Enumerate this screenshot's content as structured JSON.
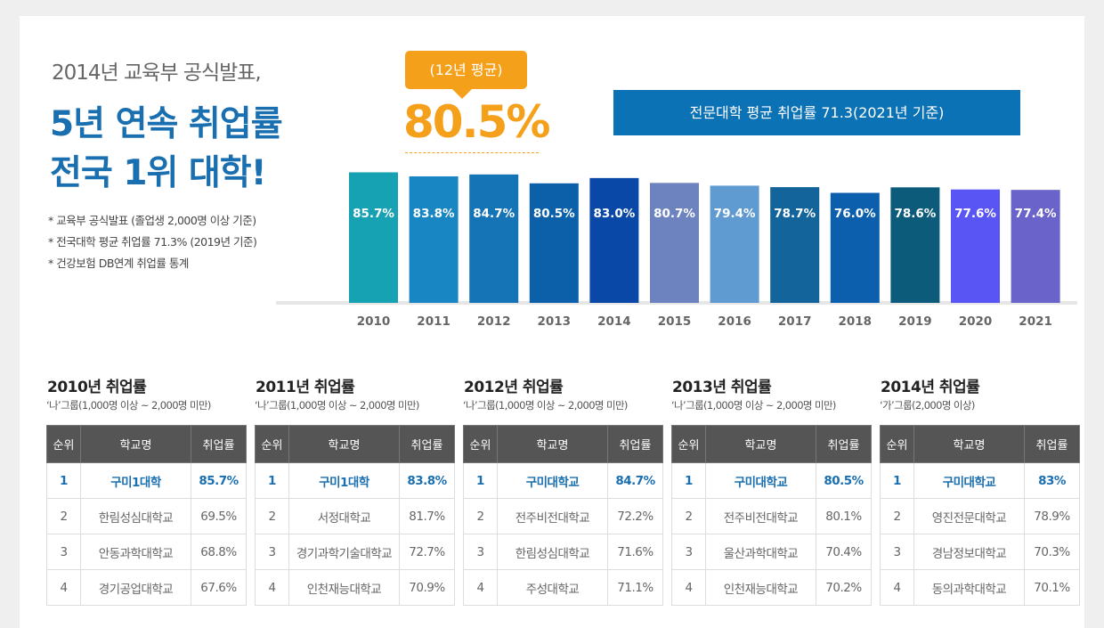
{
  "header": {
    "line1": "2014년 교육부 공식발표,",
    "line2": "5년 연속 취업률",
    "line3": "전국 1위 대학!",
    "notes": [
      "* 교육부 공식발표 (졸업생 2,000명 이상 기준)",
      "* 전국대학 평균 취업률 71.3% (2019년 기준)",
      "* 건강보험 DB연계 취업률 통계"
    ]
  },
  "callout": {
    "label": "(12년 평균)",
    "value": "80.5%"
  },
  "chart_data": {
    "type": "bar",
    "annotation": "전문대학 평균 취업률 71.3(2021년 기준)",
    "categories": [
      "2010",
      "2011",
      "2012",
      "2013",
      "2014",
      "2015",
      "2016",
      "2017",
      "2018",
      "2019",
      "2020",
      "2021"
    ],
    "values": [
      85.7,
      83.8,
      84.7,
      80.5,
      83.0,
      80.7,
      79.4,
      78.7,
      76.0,
      78.6,
      77.6,
      77.4
    ],
    "value_labels": [
      "85.7%",
      "83.8%",
      "84.7%",
      "80.5%",
      "83.0%",
      "80.7%",
      "79.4%",
      "78.7%",
      "76.0%",
      "78.6%",
      "77.6%",
      "77.4%"
    ],
    "colors": [
      "#17a2b4",
      "#1786c2",
      "#1474b6",
      "#0b60a9",
      "#0a48a7",
      "#6c83bf",
      "#5f9bd1",
      "#12649b",
      "#0b5fac",
      "#0c5b7b",
      "#5954f4",
      "#6a63c9"
    ],
    "ylim": [
      24,
      88
    ]
  },
  "tables": [
    {
      "title": "2010년 취업률",
      "subtitle": "‘나’그룹(1,000명 이상 ~ 2,000명 미만)",
      "headers": [
        "순위",
        "학교명",
        "취업률"
      ],
      "rows": [
        [
          "1",
          "구미1대학",
          "85.7%"
        ],
        [
          "2",
          "한림성심대학교",
          "69.5%"
        ],
        [
          "3",
          "안동과학대학교",
          "68.8%"
        ],
        [
          "4",
          "경기공업대학교",
          "67.6%"
        ]
      ]
    },
    {
      "title": "2011년 취업률",
      "subtitle": "‘나’그룹(1,000명 이상 ~ 2,000명 미만)",
      "headers": [
        "순위",
        "학교명",
        "취업률"
      ],
      "rows": [
        [
          "1",
          "구미1대학",
          "83.8%"
        ],
        [
          "2",
          "서정대학교",
          "81.7%"
        ],
        [
          "3",
          "경기과학기술대학교",
          "72.7%"
        ],
        [
          "4",
          "인천재능대학교",
          "70.9%"
        ]
      ]
    },
    {
      "title": "2012년 취업률",
      "subtitle": "‘나’그룹(1,000명 이상 ~ 2,000명 미만)",
      "headers": [
        "순위",
        "학교명",
        "취업률"
      ],
      "rows": [
        [
          "1",
          "구미대학교",
          "84.7%"
        ],
        [
          "2",
          "전주비전대학교",
          "72.2%"
        ],
        [
          "3",
          "한림성심대학교",
          "71.6%"
        ],
        [
          "4",
          "주성대학교",
          "71.1%"
        ]
      ]
    },
    {
      "title": "2013년 취업률",
      "subtitle": "‘나’그룹(1,000명 이상 ~ 2,000명 미만)",
      "headers": [
        "순위",
        "학교명",
        "취업률"
      ],
      "rows": [
        [
          "1",
          "구미대학교",
          "80.5%"
        ],
        [
          "2",
          "전주비전대학교",
          "80.1%"
        ],
        [
          "3",
          "울산과학대학교",
          "70.4%"
        ],
        [
          "4",
          "인천재능대학교",
          "70.2%"
        ]
      ]
    },
    {
      "title": "2014년 취업률",
      "subtitle": "‘가’그룹(2,000명 이상)",
      "headers": [
        "순위",
        "학교명",
        "취업률"
      ],
      "rows": [
        [
          "1",
          "구미대학교",
          "83%"
        ],
        [
          "2",
          "영진전문대학교",
          "78.9%"
        ],
        [
          "3",
          "경남정보대학교",
          "70.3%"
        ],
        [
          "4",
          "동의과학대학교",
          "70.1%"
        ]
      ]
    }
  ]
}
